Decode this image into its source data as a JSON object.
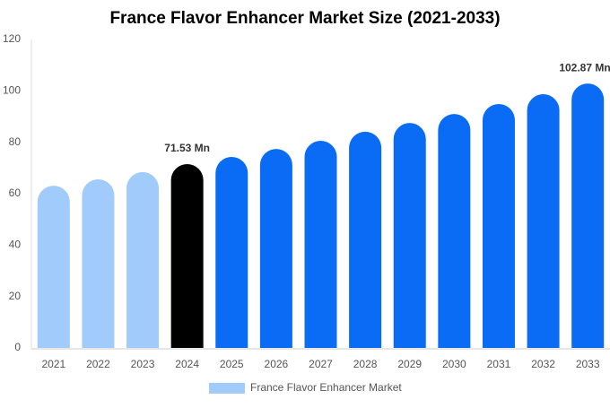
{
  "chart_data": {
    "type": "bar",
    "title": "France Flavor Enhancer Market Size (2021-2033)",
    "categories": [
      "2021",
      "2022",
      "2023",
      "2024",
      "2025",
      "2026",
      "2027",
      "2028",
      "2029",
      "2030",
      "2031",
      "2032",
      "2033"
    ],
    "series": [
      {
        "name": "France Flavor Enhancer Market",
        "color": "#a0cbfa",
        "values": [
          63.1,
          65.6,
          68.4,
          71.53,
          74.3,
          77.4,
          80.6,
          84.1,
          87.5,
          91.0,
          94.9,
          98.7,
          102.87
        ],
        "value_labels": [
          null,
          null,
          null,
          "71.53 Mn",
          null,
          null,
          null,
          null,
          null,
          null,
          null,
          null,
          "102.87 Mn"
        ],
        "bar_colors": [
          "#a0cbfa",
          "#a0cbfa",
          "#a0cbfa",
          "#000000",
          "#0a6cf5",
          "#0a6cf5",
          "#0a6cf5",
          "#0a6cf5",
          "#0a6cf5",
          "#0a6cf5",
          "#0a6cf5",
          "#0a6cf5",
          "#0a6cf5"
        ]
      }
    ],
    "ylim": [
      0,
      120
    ],
    "yticks": [
      0,
      20,
      40,
      60,
      80,
      100,
      120
    ],
    "grid": false,
    "legend": "bottom"
  }
}
